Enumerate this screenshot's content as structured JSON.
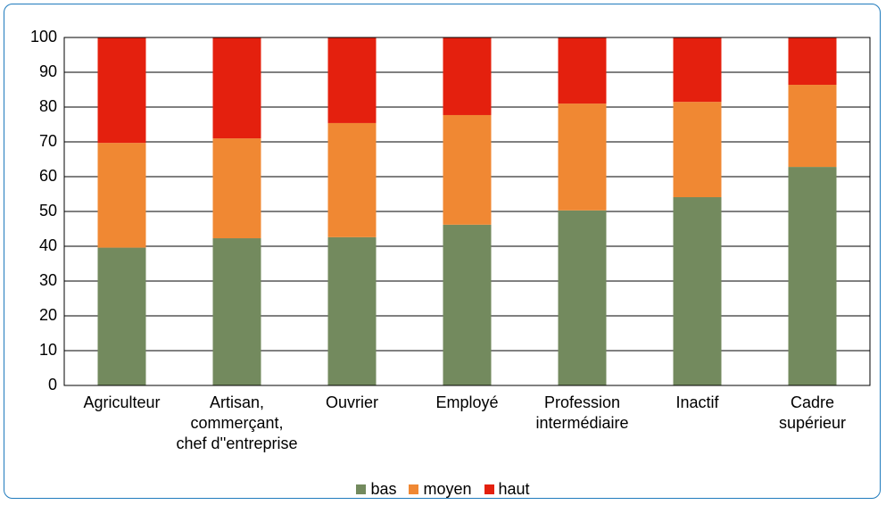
{
  "chart_data": {
    "type": "stacked_bar",
    "categories": [
      "Agriculteur",
      "Artisan,\ncommerçant,\nchef d''entreprise",
      "Ouvrier",
      "Employé",
      "Profession\nintermédiaire",
      "Inactif",
      "Cadre\nsupérieur"
    ],
    "series": [
      {
        "name": "bas",
        "color": "#738a5e",
        "values": [
          39.6,
          42.3,
          42.6,
          46.2,
          50.3,
          54.1,
          62.8
        ]
      },
      {
        "name": "moyen",
        "color": "#f08833",
        "values": [
          30.1,
          28.7,
          32.8,
          31.5,
          30.7,
          27.4,
          23.6
        ]
      },
      {
        "name": "haut",
        "color": "#e4200e",
        "values": [
          30.3,
          29.0,
          24.6,
          22.3,
          19.0,
          18.5,
          13.6
        ]
      }
    ],
    "ylim": [
      0,
      100
    ],
    "yticks": [
      0,
      10,
      20,
      30,
      40,
      50,
      60,
      70,
      80,
      90,
      100
    ],
    "grid": true,
    "legend": "bottom"
  }
}
